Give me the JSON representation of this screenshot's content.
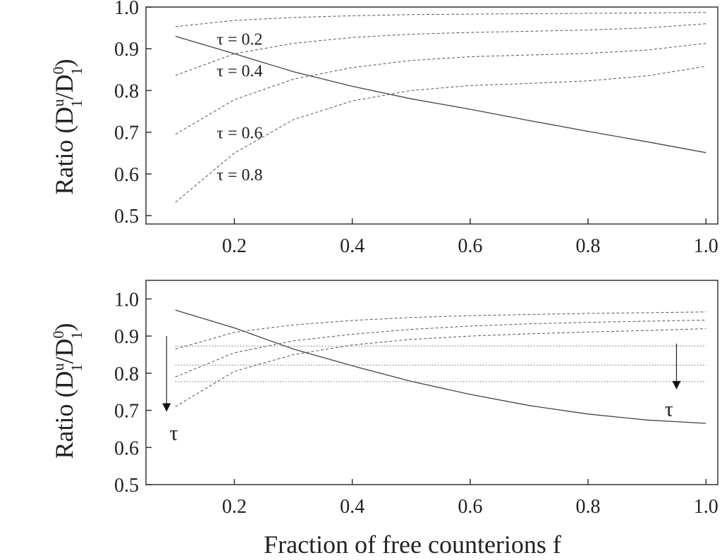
{
  "chart_data": [
    {
      "type": "line",
      "panel": "top",
      "ylabel": {
        "main": "Ratio (D",
        "sup1": "u",
        "sub1": "1",
        "mid": "/D",
        "sup2": "0",
        "sub2": "1",
        "end": ")"
      },
      "xlabel": "",
      "xlim": [
        0.05,
        1.02
      ],
      "ylim": [
        0.48,
        1.0
      ],
      "xticks": [
        "0.2",
        "0.4",
        "0.6",
        "0.8",
        "1.0"
      ],
      "xtick_values": [
        0.2,
        0.4,
        0.6,
        0.8,
        1.0
      ],
      "yticks": [
        "0.5",
        "0.6",
        "0.7",
        "0.8",
        "0.9",
        "1.0"
      ],
      "ytick_values": [
        0.5,
        0.6,
        0.7,
        0.8,
        0.9,
        1.0
      ],
      "series": [
        {
          "style": "solid",
          "x": [
            0.1,
            0.2,
            0.3,
            0.4,
            0.5,
            0.6,
            0.7,
            0.8,
            0.9,
            1.0
          ],
          "y": [
            0.93,
            0.888,
            0.845,
            0.81,
            0.78,
            0.755,
            0.728,
            0.702,
            0.677,
            0.651
          ]
        },
        {
          "style": "dashed",
          "x": [
            0.1,
            0.2,
            0.3,
            0.4,
            0.5,
            0.6,
            0.7,
            0.8,
            0.9,
            1.0
          ],
          "y": [
            0.953,
            0.968,
            0.975,
            0.979,
            0.982,
            0.983,
            0.984,
            0.985,
            0.986,
            0.987
          ]
        },
        {
          "style": "dashed",
          "x": [
            0.1,
            0.2,
            0.3,
            0.4,
            0.5,
            0.6,
            0.7,
            0.8,
            0.9,
            1.0
          ],
          "y": [
            0.836,
            0.888,
            0.913,
            0.927,
            0.935,
            0.939,
            0.942,
            0.945,
            0.95,
            0.96
          ]
        },
        {
          "style": "dashed",
          "x": [
            0.1,
            0.2,
            0.3,
            0.4,
            0.5,
            0.6,
            0.7,
            0.8,
            0.9,
            1.0
          ],
          "y": [
            0.695,
            0.778,
            0.827,
            0.855,
            0.872,
            0.881,
            0.885,
            0.889,
            0.897,
            0.913
          ]
        },
        {
          "style": "dashed",
          "x": [
            0.1,
            0.2,
            0.3,
            0.4,
            0.5,
            0.6,
            0.7,
            0.8,
            0.9,
            1.0
          ],
          "y": [
            0.532,
            0.65,
            0.73,
            0.775,
            0.8,
            0.812,
            0.817,
            0.823,
            0.835,
            0.858
          ]
        }
      ],
      "annotations": [
        {
          "text": "τ = 0.2",
          "x": 0.17,
          "y": 0.91
        },
        {
          "text": "τ = 0.4",
          "x": 0.17,
          "y": 0.834
        },
        {
          "text": "τ = 0.6",
          "x": 0.17,
          "y": 0.685
        },
        {
          "text": "τ = 0.8",
          "x": 0.17,
          "y": 0.585
        }
      ]
    },
    {
      "type": "line",
      "panel": "bottom",
      "ylabel": {
        "main": "Ratio (D",
        "sup1": "u",
        "sub1": "1",
        "mid": "/D",
        "sup2": "0",
        "sub2": "1",
        "end": ")"
      },
      "xlabel": "Fraction of free counterions  f",
      "xlim": [
        0.05,
        1.02
      ],
      "ylim": [
        0.5,
        1.05
      ],
      "xticks": [
        "0.2",
        "0.4",
        "0.6",
        "0.8",
        "1.0"
      ],
      "xtick_values": [
        0.2,
        0.4,
        0.6,
        0.8,
        1.0
      ],
      "yticks": [
        "0.5",
        "0.6",
        "0.7",
        "0.8",
        "0.9",
        "1.0"
      ],
      "ytick_values": [
        0.5,
        0.6,
        0.7,
        0.8,
        0.9,
        1.0
      ],
      "series": [
        {
          "style": "solid",
          "x": [
            0.1,
            0.2,
            0.3,
            0.4,
            0.5,
            0.6,
            0.7,
            0.8,
            0.9,
            1.0
          ],
          "y": [
            0.97,
            0.922,
            0.865,
            0.82,
            0.778,
            0.743,
            0.713,
            0.69,
            0.674,
            0.665
          ]
        },
        {
          "style": "dashed",
          "x": [
            0.1,
            0.2,
            0.3,
            0.4,
            0.5,
            0.6,
            0.7,
            0.8,
            0.9,
            1.0
          ],
          "y": [
            0.865,
            0.91,
            0.93,
            0.942,
            0.95,
            0.955,
            0.958,
            0.961,
            0.963,
            0.965
          ]
        },
        {
          "style": "dashed",
          "x": [
            0.1,
            0.2,
            0.3,
            0.4,
            0.5,
            0.6,
            0.7,
            0.8,
            0.9,
            1.0
          ],
          "y": [
            0.79,
            0.855,
            0.887,
            0.905,
            0.918,
            0.927,
            0.933,
            0.937,
            0.94,
            0.943
          ]
        },
        {
          "style": "dashed",
          "x": [
            0.1,
            0.2,
            0.3,
            0.4,
            0.5,
            0.6,
            0.7,
            0.8,
            0.9,
            1.0
          ],
          "y": [
            0.71,
            0.805,
            0.85,
            0.876,
            0.891,
            0.9,
            0.906,
            0.911,
            0.915,
            0.92
          ]
        },
        {
          "style": "dotted",
          "x": [
            0.1,
            1.0
          ],
          "y": [
            0.873,
            0.873
          ]
        },
        {
          "style": "dotted",
          "x": [
            0.1,
            1.0
          ],
          "y": [
            0.822,
            0.822
          ]
        },
        {
          "style": "dotted",
          "x": [
            0.1,
            1.0
          ],
          "y": [
            0.777,
            0.777
          ]
        }
      ],
      "arrows": [
        {
          "x": 0.085,
          "y_from": 0.9,
          "y_to": 0.7
        },
        {
          "x": 0.95,
          "y_from": 0.88,
          "y_to": 0.76
        }
      ],
      "annotations": [
        {
          "text": "τ",
          "x": 0.09,
          "y": 0.62
        },
        {
          "text": "τ",
          "x": 0.93,
          "y": 0.685
        }
      ]
    }
  ]
}
